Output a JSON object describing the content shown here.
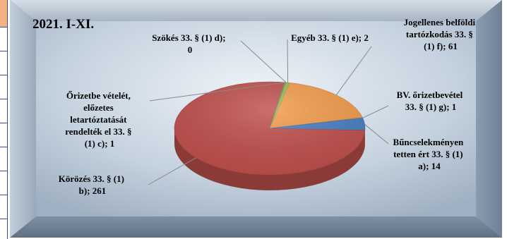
{
  "chart_data": {
    "type": "pie",
    "title": "2021. I-XI.",
    "slices": [
      {
        "label": "Jogellenes belföldi tartózkodás 33. § (1) f)",
        "value": 61,
        "color": "#f29b4b"
      },
      {
        "label": "BV. őrizetbevétel 33. § (1) g)",
        "value": 1,
        "color": "#7f8fa8"
      },
      {
        "label": "Bűncselekményen tetten ért 33. § (1) a)",
        "value": 14,
        "color": "#4a7ec2"
      },
      {
        "label": "Körözés 33. § (1) b)",
        "value": 261,
        "color": "#c0504d"
      },
      {
        "label": "Őrizetbe vételét, előzetes letartóztatását rendelték el 33. § (1) c)",
        "value": 1,
        "color": "#7a9a5b"
      },
      {
        "label": "Szökés 33. § (1) d)",
        "value": 0,
        "color": "#b4c7e7"
      },
      {
        "label": "Egyéb 33. § (1) e)",
        "value": 2,
        "color": "#9bbb59"
      }
    ],
    "legend": "none"
  },
  "labels": {
    "jogellenes": [
      "Jogellenes belföldi",
      "tartózkodás 33. §",
      "(1) f); 61"
    ],
    "bv": [
      "BV. őrizetbevétel",
      "33. § (1) g); 1"
    ],
    "buncselekmeny": [
      "Bűncselekményen",
      "tetten ért 33. § (1)",
      "a); 14"
    ],
    "korozes": [
      "Körözés 33. § (1)",
      "b); 261"
    ],
    "orizetbe": [
      "Őrizetbe vételét,",
      "előzetes",
      "letartóztatását",
      "rendelték el 33. §",
      "(1) c); 1"
    ],
    "szokes": [
      "Szökés 33. § (1) d);",
      "0"
    ],
    "egyeb": [
      "Egyéb 33. § (1) e); 2"
    ]
  }
}
